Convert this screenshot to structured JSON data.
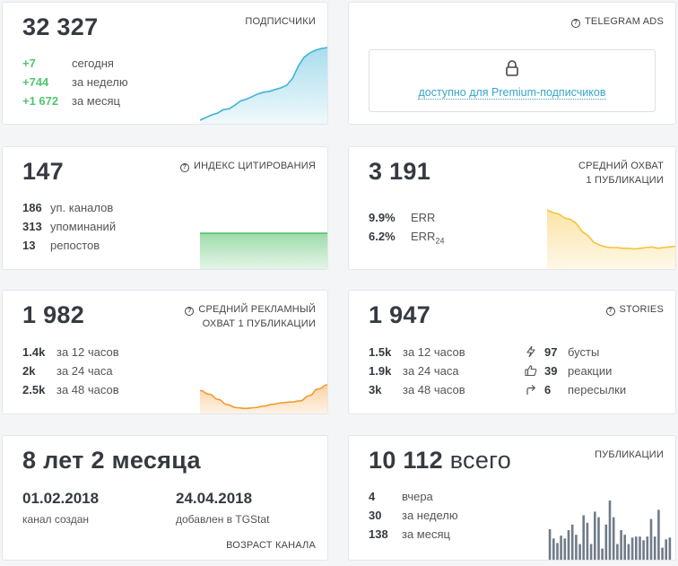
{
  "subscribers": {
    "value": "32 327",
    "label": "ПОДПИСЧИКИ",
    "rows": [
      {
        "value": "+7",
        "text": "сегодня"
      },
      {
        "value": "+744",
        "text": "за неделю"
      },
      {
        "value": "+1 672",
        "text": "за месяц"
      }
    ]
  },
  "telegram_ads": {
    "label": "TELEGRAM ADS",
    "premium_link": "доступно для Premium-подписчиков"
  },
  "citation": {
    "value": "147",
    "label": "ИНДЕКС ЦИТИРОВАНИЯ",
    "rows": [
      {
        "value": "186",
        "text": "уп. каналов"
      },
      {
        "value": "313",
        "text": "упоминаний"
      },
      {
        "value": "13",
        "text": "репостов"
      }
    ]
  },
  "avg_reach": {
    "value": "3 191",
    "label_line1": "СРЕДНИЙ ОХВАТ",
    "label_line2": "1 ПУБЛИКАЦИИ",
    "rows": [
      {
        "value": "9.9%",
        "text": "ERR",
        "sub": ""
      },
      {
        "value": "6.2%",
        "text": "ERR",
        "sub": "24"
      }
    ]
  },
  "ad_reach": {
    "value": "1 982",
    "label_line1": "СРЕДНИЙ РЕКЛАМНЫЙ",
    "label_line2": "ОХВАТ 1 ПУБЛИКАЦИИ",
    "rows": [
      {
        "value": "1.4k",
        "text": "за 12 часов"
      },
      {
        "value": "2k",
        "text": "за 24 часа"
      },
      {
        "value": "2.5k",
        "text": "за 48 часов"
      }
    ]
  },
  "stories": {
    "value": "1 947",
    "label": "STORIES",
    "rows": [
      {
        "value": "1.5k",
        "text": "за 12 часов"
      },
      {
        "value": "1.9k",
        "text": "за 24 часа"
      },
      {
        "value": "3k",
        "text": "за 48 часов"
      }
    ],
    "stats": [
      {
        "icon": "lightning-icon",
        "value": "97",
        "text": "бусты"
      },
      {
        "icon": "thumbs-up-icon",
        "value": "39",
        "text": "реакции"
      },
      {
        "icon": "share-arrow-icon",
        "value": "6",
        "text": "пересылки"
      }
    ]
  },
  "age": {
    "value": "8 лет 2 месяца",
    "created_date": "01.02.2018",
    "created_label": "канал создан",
    "added_date": "24.04.2018",
    "added_label": "добавлен в TGStat",
    "label": "ВОЗРАСТ КАНАЛА"
  },
  "publications": {
    "value": "10 112",
    "value_unit": "всего",
    "label": "ПУБЛИКАЦИИ",
    "rows": [
      {
        "value": "4",
        "text": "вчера"
      },
      {
        "value": "30",
        "text": "за неделю"
      },
      {
        "value": "138",
        "text": "за месяц"
      }
    ]
  },
  "colors": {
    "accent_green": "#4ec76f",
    "link_blue": "#3aa4c9",
    "subscribers_line": "#3fb3d8",
    "citation_line": "#4cbf63",
    "reach_line": "#f5c33b",
    "ad_reach_line": "#f39a2f",
    "bars": "#6f7b89"
  },
  "chart_data": [
    {
      "type": "area",
      "name": "subscribers",
      "values": [
        0,
        3,
        6,
        8,
        12,
        13,
        17,
        22,
        24,
        27,
        30,
        32,
        33,
        35,
        37,
        40,
        48,
        62,
        72,
        77,
        80,
        82,
        83
      ]
    },
    {
      "type": "area",
      "name": "citation",
      "values": [
        1,
        1,
        1,
        1,
        1,
        1,
        1,
        1,
        1,
        1
      ]
    },
    {
      "type": "area",
      "name": "avg_reach",
      "values": [
        72,
        68,
        66,
        60,
        58,
        52,
        40,
        34,
        24,
        20,
        17,
        16,
        16,
        15,
        15,
        14,
        15,
        16,
        17,
        15,
        16,
        17,
        18
      ]
    },
    {
      "type": "area",
      "name": "ad_reach",
      "values": [
        52,
        42,
        28,
        14,
        6,
        4,
        6,
        10,
        15,
        19,
        21,
        24,
        38,
        56,
        67
      ]
    },
    {
      "type": "bar",
      "name": "publications",
      "values": [
        33,
        23,
        18,
        26,
        23,
        32,
        38,
        27,
        17,
        48,
        40,
        17,
        52,
        46,
        12,
        38,
        64,
        46,
        17,
        32,
        27,
        17,
        24,
        25,
        25,
        21,
        25,
        44,
        25,
        54,
        13,
        22,
        24
      ]
    }
  ]
}
